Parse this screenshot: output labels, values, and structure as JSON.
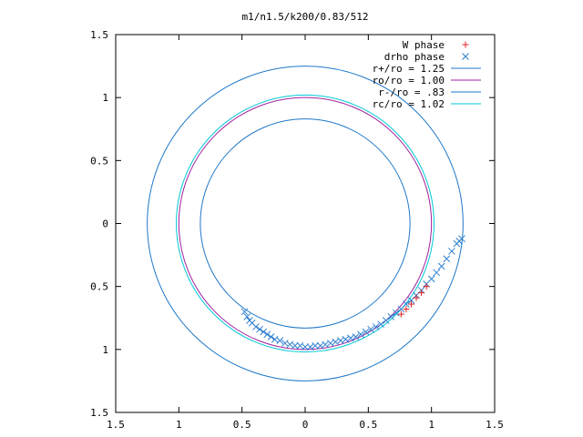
{
  "chart_data": {
    "type": "scatter",
    "title": "m1/n1.5/k200/0.83/512",
    "xlabel": "",
    "ylabel": "",
    "xlim": [
      -1.5,
      1.5
    ],
    "ylim": [
      -1.5,
      1.5
    ],
    "xticks": [
      "1.5",
      "1",
      "0.5",
      "0",
      "0.5",
      "1",
      "1.5"
    ],
    "yticks": [
      "1.5",
      "1",
      "0.5",
      "0",
      "0.5",
      "1",
      "1.5"
    ],
    "legend_position": "top-right",
    "circles": [
      {
        "name": "r+/ro = 1.25",
        "radius": 1.25,
        "color": "#1f78c8"
      },
      {
        "name": "ro/ro = 1.00",
        "radius": 1.0,
        "color": "#a020a0"
      },
      {
        "name": "r-/ro = .83",
        "radius": 0.83,
        "color": "#1f78c8"
      },
      {
        "name": "rc/ro = 1.02",
        "radius": 1.02,
        "color": "#00c8d8"
      }
    ],
    "series": [
      {
        "name": "W phase",
        "marker": "+",
        "color": "#e02020",
        "x": [
          0.76,
          0.8,
          0.84,
          0.88,
          0.92,
          0.96
        ],
        "y": [
          -0.72,
          -0.68,
          -0.64,
          -0.59,
          -0.55,
          -0.5
        ]
      },
      {
        "name": "drho phase",
        "marker": "x",
        "color": "#3080d0",
        "x": [
          -0.48,
          -0.46,
          -0.44,
          -0.42,
          -0.39,
          -0.36,
          -0.33,
          -0.3,
          -0.27,
          -0.24,
          -0.2,
          -0.16,
          -0.12,
          -0.08,
          -0.04,
          0.0,
          0.04,
          0.08,
          0.12,
          0.16,
          0.2,
          0.24,
          0.28,
          0.32,
          0.36,
          0.4,
          0.44,
          0.48,
          0.52,
          0.56,
          0.6,
          0.64,
          0.68,
          0.72,
          0.76,
          0.8,
          0.84,
          0.88,
          0.92,
          0.96,
          1.0,
          1.04,
          1.08,
          1.12,
          1.16,
          1.2,
          1.22,
          1.24
        ],
        "y": [
          -0.7,
          -0.74,
          -0.77,
          -0.79,
          -0.82,
          -0.84,
          -0.86,
          -0.88,
          -0.9,
          -0.92,
          -0.93,
          -0.95,
          -0.96,
          -0.97,
          -0.97,
          -0.98,
          -0.98,
          -0.97,
          -0.97,
          -0.96,
          -0.95,
          -0.94,
          -0.93,
          -0.92,
          -0.91,
          -0.9,
          -0.88,
          -0.86,
          -0.84,
          -0.82,
          -0.8,
          -0.77,
          -0.74,
          -0.71,
          -0.68,
          -0.64,
          -0.61,
          -0.57,
          -0.53,
          -0.48,
          -0.44,
          -0.39,
          -0.34,
          -0.28,
          -0.22,
          -0.16,
          -0.14,
          -0.12
        ]
      }
    ]
  }
}
